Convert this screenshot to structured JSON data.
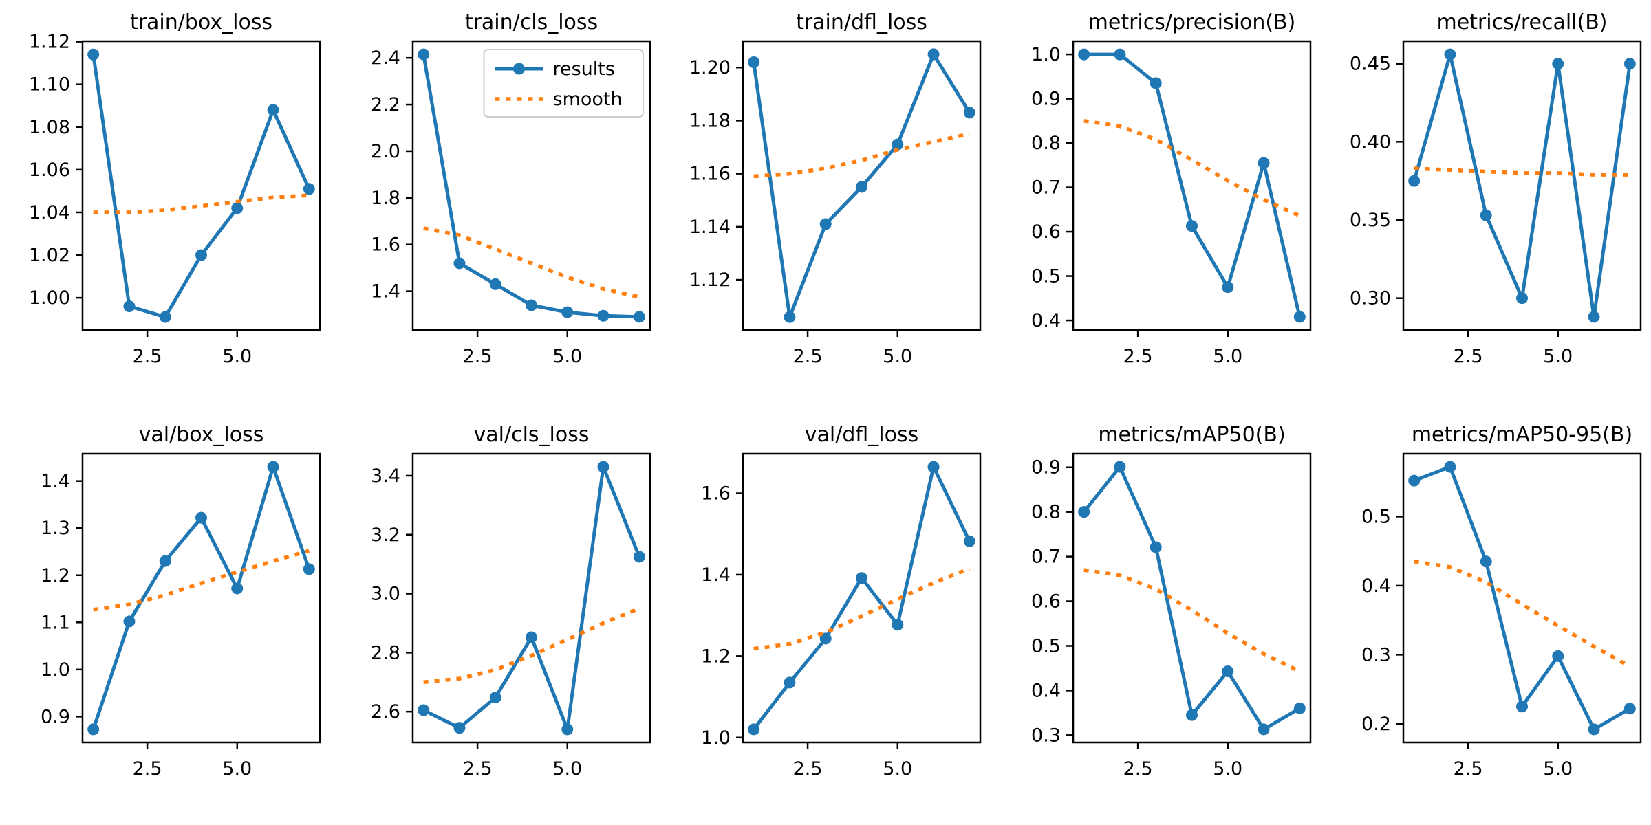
{
  "figure": {
    "background": "#ffffff",
    "spine_color": "#000000",
    "tick_color": "#000000",
    "legend_border_color": "#cccccc",
    "results_color": "#1f77b4",
    "smooth_color": "#ff7f0e"
  },
  "chart_data": [
    {
      "type": "line",
      "title": "train/box_loss",
      "x": [
        1,
        2,
        3,
        4,
        5,
        6,
        7
      ],
      "xlim": [
        0.7,
        7.3
      ],
      "xticks": [
        2.5,
        5.0
      ],
      "xtick_labels": [
        "2.5",
        "5.0"
      ],
      "ylim": [
        0.9849,
        1.1202
      ],
      "yticks": [
        1.0,
        1.02,
        1.04,
        1.06,
        1.08,
        1.1,
        1.12
      ],
      "ytick_labels": [
        "1.00",
        "1.02",
        "1.04",
        "1.06",
        "1.08",
        "1.10",
        "1.12"
      ],
      "legend": false,
      "grid": false,
      "series": [
        {
          "name": "results",
          "color": "#1f77b4",
          "style": "solid",
          "marker": "circle",
          "values": [
            1.114,
            0.996,
            0.991,
            1.02,
            1.042,
            1.088,
            1.051
          ]
        },
        {
          "name": "smooth",
          "color": "#ff7f0e",
          "style": "dotted",
          "marker": "none",
          "values": [
            1.04,
            1.04,
            1.041,
            1.043,
            1.045,
            1.047,
            1.048
          ]
        }
      ]
    },
    {
      "type": "line",
      "title": "train/cls_loss",
      "x": [
        1,
        2,
        3,
        4,
        5,
        6,
        7
      ],
      "xlim": [
        0.7,
        7.3
      ],
      "xticks": [
        2.5,
        5.0
      ],
      "xtick_labels": [
        "2.5",
        "5.0"
      ],
      "ylim": [
        1.2338,
        2.4712
      ],
      "yticks": [
        1.4,
        1.6,
        1.8,
        2.0,
        2.2,
        2.4
      ],
      "ytick_labels": [
        "1.4",
        "1.6",
        "1.8",
        "2.0",
        "2.2",
        "2.4"
      ],
      "legend": true,
      "legend_position": "upper right",
      "grid": false,
      "series": [
        {
          "name": "results",
          "color": "#1f77b4",
          "style": "solid",
          "marker": "circle",
          "values": [
            2.415,
            1.52,
            1.43,
            1.34,
            1.31,
            1.295,
            1.29
          ]
        },
        {
          "name": "smooth",
          "color": "#ff7f0e",
          "style": "dotted",
          "marker": "none",
          "values": [
            1.67,
            1.64,
            1.58,
            1.52,
            1.46,
            1.41,
            1.375
          ]
        }
      ]
    },
    {
      "type": "line",
      "title": "train/dfl_loss",
      "x": [
        1,
        2,
        3,
        4,
        5,
        6,
        7
      ],
      "xlim": [
        0.7,
        7.3
      ],
      "xticks": [
        2.5,
        5.0
      ],
      "xtick_labels": [
        "2.5",
        "5.0"
      ],
      "ylim": [
        1.1011,
        1.2099
      ],
      "yticks": [
        1.12,
        1.14,
        1.16,
        1.18,
        1.2
      ],
      "ytick_labels": [
        "1.12",
        "1.14",
        "1.16",
        "1.18",
        "1.20"
      ],
      "legend": false,
      "grid": false,
      "series": [
        {
          "name": "results",
          "color": "#1f77b4",
          "style": "solid",
          "marker": "circle",
          "values": [
            1.202,
            1.106,
            1.141,
            1.155,
            1.171,
            1.205,
            1.183
          ]
        },
        {
          "name": "smooth",
          "color": "#ff7f0e",
          "style": "dotted",
          "marker": "none",
          "values": [
            1.159,
            1.16,
            1.162,
            1.165,
            1.169,
            1.172,
            1.175
          ]
        }
      ]
    },
    {
      "type": "line",
      "title": "metrics/precision(B)",
      "x": [
        1,
        2,
        3,
        4,
        5,
        6,
        7
      ],
      "xlim": [
        0.7,
        7.3
      ],
      "xticks": [
        2.5,
        5.0
      ],
      "xtick_labels": [
        "2.5",
        "5.0"
      ],
      "ylim": [
        0.3784,
        1.0296
      ],
      "yticks": [
        0.4,
        0.5,
        0.6,
        0.7,
        0.8,
        0.9,
        1.0
      ],
      "ytick_labels": [
        "0.4",
        "0.5",
        "0.6",
        "0.7",
        "0.8",
        "0.9",
        "1.0"
      ],
      "legend": false,
      "grid": false,
      "series": [
        {
          "name": "results",
          "color": "#1f77b4",
          "style": "solid",
          "marker": "circle",
          "values": [
            1.0,
            1.0,
            0.935,
            0.613,
            0.475,
            0.755,
            0.408
          ]
        },
        {
          "name": "smooth",
          "color": "#ff7f0e",
          "style": "dotted",
          "marker": "none",
          "values": [
            0.85,
            0.838,
            0.808,
            0.762,
            0.715,
            0.672,
            0.636
          ]
        }
      ]
    },
    {
      "type": "line",
      "title": "metrics/recall(B)",
      "x": [
        1,
        2,
        3,
        4,
        5,
        6,
        7
      ],
      "xlim": [
        0.7,
        7.3
      ],
      "xticks": [
        2.5,
        5.0
      ],
      "xtick_labels": [
        "2.5",
        "5.0"
      ],
      "ylim": [
        0.2796,
        0.4644
      ],
      "yticks": [
        0.3,
        0.35,
        0.4,
        0.45
      ],
      "ytick_labels": [
        "0.30",
        "0.35",
        "0.40",
        "0.45"
      ],
      "legend": false,
      "grid": false,
      "series": [
        {
          "name": "results",
          "color": "#1f77b4",
          "style": "solid",
          "marker": "circle",
          "values": [
            0.375,
            0.456,
            0.353,
            0.3,
            0.45,
            0.288,
            0.45
          ]
        },
        {
          "name": "smooth",
          "color": "#ff7f0e",
          "style": "dotted",
          "marker": "none",
          "values": [
            0.383,
            0.382,
            0.381,
            0.38,
            0.38,
            0.379,
            0.379
          ]
        }
      ]
    },
    {
      "type": "line",
      "title": "val/box_loss",
      "x": [
        1,
        2,
        3,
        4,
        5,
        6,
        7
      ],
      "xlim": [
        0.7,
        7.3
      ],
      "xticks": [
        2.5,
        5.0
      ],
      "xtick_labels": [
        "2.5",
        "5.0"
      ],
      "ylim": [
        0.8451,
        1.4579
      ],
      "yticks": [
        0.9,
        1.0,
        1.1,
        1.2,
        1.3,
        1.4
      ],
      "ytick_labels": [
        "0.9",
        "1.0",
        "1.1",
        "1.2",
        "1.3",
        "1.4"
      ],
      "legend": false,
      "grid": false,
      "series": [
        {
          "name": "results",
          "color": "#1f77b4",
          "style": "solid",
          "marker": "circle",
          "values": [
            0.873,
            1.102,
            1.23,
            1.322,
            1.172,
            1.43,
            1.213
          ]
        },
        {
          "name": "smooth",
          "color": "#ff7f0e",
          "style": "dotted",
          "marker": "none",
          "values": [
            1.127,
            1.138,
            1.158,
            1.183,
            1.207,
            1.23,
            1.252
          ]
        }
      ]
    },
    {
      "type": "line",
      "title": "val/cls_loss",
      "x": [
        1,
        2,
        3,
        4,
        5,
        6,
        7
      ],
      "xlim": [
        0.7,
        7.3
      ],
      "xticks": [
        2.5,
        5.0
      ],
      "xtick_labels": [
        "2.5",
        "5.0"
      ],
      "ylim": [
        2.4955,
        3.4745
      ],
      "yticks": [
        2.6,
        2.8,
        3.0,
        3.2,
        3.4
      ],
      "ytick_labels": [
        "2.6",
        "2.8",
        "3.0",
        "3.2",
        "3.4"
      ],
      "legend": false,
      "grid": false,
      "series": [
        {
          "name": "results",
          "color": "#1f77b4",
          "style": "solid",
          "marker": "circle",
          "values": [
            2.605,
            2.545,
            2.648,
            2.852,
            2.54,
            3.43,
            3.125
          ]
        },
        {
          "name": "smooth",
          "color": "#ff7f0e",
          "style": "dotted",
          "marker": "none",
          "values": [
            2.7,
            2.712,
            2.742,
            2.79,
            2.845,
            2.9,
            2.95
          ]
        }
      ]
    },
    {
      "type": "line",
      "title": "val/dfl_loss",
      "x": [
        1,
        2,
        3,
        4,
        5,
        6,
        7
      ],
      "xlim": [
        0.7,
        7.3
      ],
      "xticks": [
        2.5,
        5.0
      ],
      "xtick_labels": [
        "2.5",
        "5.0"
      ],
      "ylim": [
        0.9878,
        1.6972
      ],
      "yticks": [
        1.0,
        1.2,
        1.4,
        1.6
      ],
      "ytick_labels": [
        "1.0",
        "1.2",
        "1.4",
        "1.6"
      ],
      "legend": false,
      "grid": false,
      "series": [
        {
          "name": "results",
          "color": "#1f77b4",
          "style": "solid",
          "marker": "circle",
          "values": [
            1.02,
            1.135,
            1.243,
            1.392,
            1.277,
            1.665,
            1.482
          ]
        },
        {
          "name": "smooth",
          "color": "#ff7f0e",
          "style": "dotted",
          "marker": "none",
          "values": [
            1.218,
            1.23,
            1.258,
            1.298,
            1.34,
            1.38,
            1.415
          ]
        }
      ]
    },
    {
      "type": "line",
      "title": "metrics/mAP50(B)",
      "x": [
        1,
        2,
        3,
        4,
        5,
        6,
        7
      ],
      "xlim": [
        0.7,
        7.3
      ],
      "xticks": [
        2.5,
        5.0
      ],
      "xtick_labels": [
        "2.5",
        "5.0"
      ],
      "ylim": [
        0.2836,
        0.9304
      ],
      "yticks": [
        0.3,
        0.4,
        0.5,
        0.6,
        0.7,
        0.8,
        0.9
      ],
      "ytick_labels": [
        "0.3",
        "0.4",
        "0.5",
        "0.6",
        "0.7",
        "0.8",
        "0.9"
      ],
      "legend": false,
      "grid": false,
      "series": [
        {
          "name": "results",
          "color": "#1f77b4",
          "style": "solid",
          "marker": "circle",
          "values": [
            0.8,
            0.901,
            0.721,
            0.345,
            0.443,
            0.313,
            0.36
          ]
        },
        {
          "name": "smooth",
          "color": "#ff7f0e",
          "style": "dotted",
          "marker": "none",
          "values": [
            0.67,
            0.658,
            0.627,
            0.58,
            0.528,
            0.482,
            0.443
          ]
        }
      ]
    },
    {
      "type": "line",
      "title": "metrics/mAP50-95(B)",
      "x": [
        1,
        2,
        3,
        4,
        5,
        6,
        7
      ],
      "xlim": [
        0.7,
        7.3
      ],
      "xticks": [
        2.5,
        5.0
      ],
      "xtick_labels": [
        "2.5",
        "5.0"
      ],
      "ylim": [
        0.173,
        0.591
      ],
      "yticks": [
        0.2,
        0.3,
        0.4,
        0.5
      ],
      "ytick_labels": [
        "0.2",
        "0.3",
        "0.4",
        "0.5"
      ],
      "legend": false,
      "grid": false,
      "series": [
        {
          "name": "results",
          "color": "#1f77b4",
          "style": "solid",
          "marker": "circle",
          "values": [
            0.552,
            0.572,
            0.435,
            0.225,
            0.298,
            0.192,
            0.222
          ]
        },
        {
          "name": "smooth",
          "color": "#ff7f0e",
          "style": "dotted",
          "marker": "none",
          "values": [
            0.435,
            0.427,
            0.405,
            0.373,
            0.342,
            0.312,
            0.283
          ]
        }
      ]
    }
  ]
}
